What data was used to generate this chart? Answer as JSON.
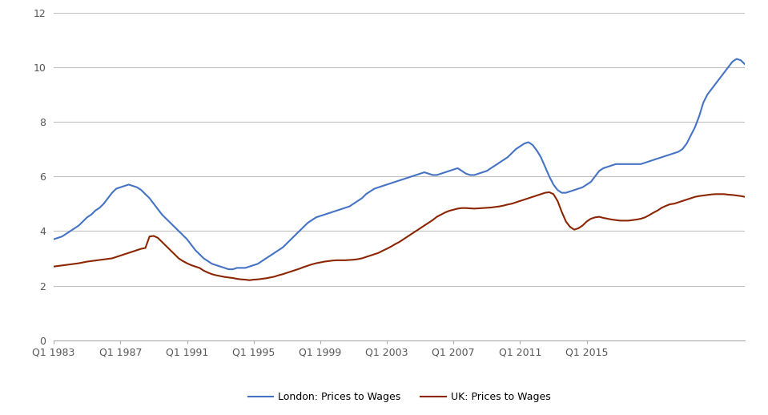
{
  "title": "",
  "xlabel": "",
  "ylabel": "",
  "ylim": [
    0,
    12
  ],
  "yticks": [
    0,
    2,
    4,
    6,
    8,
    10,
    12
  ],
  "xtick_labels": [
    "Q1 1983",
    "Q1 1987",
    "Q1 1991",
    "Q1 1995",
    "Q1 1999",
    "Q1 2003",
    "Q1 2007",
    "Q1 2011",
    "Q1 2015"
  ],
  "london_color": "#4472C4",
  "uk_color": "#8B2500",
  "legend_london": "London: Prices to Wages",
  "legend_uk": "UK: Prices to Wages",
  "background_color": "#FFFFFF",
  "grid_color": "#C0C0C0",
  "london_data": [
    3.7,
    3.75,
    3.8,
    3.9,
    4.0,
    4.1,
    4.2,
    4.35,
    4.5,
    4.6,
    4.75,
    4.85,
    5.0,
    5.2,
    5.4,
    5.55,
    5.6,
    5.65,
    5.7,
    5.65,
    5.6,
    5.5,
    5.35,
    5.2,
    5.0,
    4.8,
    4.6,
    4.45,
    4.3,
    4.15,
    4.0,
    3.85,
    3.7,
    3.5,
    3.3,
    3.15,
    3.0,
    2.9,
    2.8,
    2.75,
    2.7,
    2.65,
    2.6,
    2.6,
    2.65,
    2.65,
    2.65,
    2.7,
    2.75,
    2.8,
    2.9,
    3.0,
    3.1,
    3.2,
    3.3,
    3.4,
    3.55,
    3.7,
    3.85,
    4.0,
    4.15,
    4.3,
    4.4,
    4.5,
    4.55,
    4.6,
    4.65,
    4.7,
    4.75,
    4.8,
    4.85,
    4.9,
    5.0,
    5.1,
    5.2,
    5.35,
    5.45,
    5.55,
    5.6,
    5.65,
    5.7,
    5.75,
    5.8,
    5.85,
    5.9,
    5.95,
    6.0,
    6.05,
    6.1,
    6.15,
    6.1,
    6.05,
    6.05,
    6.1,
    6.15,
    6.2,
    6.25,
    6.3,
    6.2,
    6.1,
    6.05,
    6.05,
    6.1,
    6.15,
    6.2,
    6.3,
    6.4,
    6.5,
    6.6,
    6.7,
    6.85,
    7.0,
    7.1,
    7.2,
    7.25,
    7.15,
    6.95,
    6.7,
    6.35,
    6.0,
    5.7,
    5.5,
    5.4,
    5.4,
    5.45,
    5.5,
    5.55,
    5.6,
    5.7,
    5.8,
    6.0,
    6.2,
    6.3,
    6.35,
    6.4,
    6.45,
    6.45,
    6.45,
    6.45,
    6.45,
    6.45,
    6.45,
    6.5,
    6.55,
    6.6,
    6.65,
    6.7,
    6.75,
    6.8,
    6.85,
    6.9,
    7.0,
    7.2,
    7.5,
    7.8,
    8.2,
    8.7,
    9.0,
    9.2,
    9.4,
    9.6,
    9.8,
    10.0,
    10.2,
    10.3,
    10.25,
    10.1
  ],
  "uk_data": [
    2.7,
    2.72,
    2.74,
    2.76,
    2.78,
    2.8,
    2.82,
    2.85,
    2.88,
    2.9,
    2.92,
    2.94,
    2.96,
    2.98,
    3.0,
    3.05,
    3.1,
    3.15,
    3.2,
    3.25,
    3.3,
    3.35,
    3.38,
    3.8,
    3.82,
    3.75,
    3.6,
    3.45,
    3.3,
    3.15,
    3.0,
    2.9,
    2.82,
    2.75,
    2.7,
    2.65,
    2.55,
    2.48,
    2.42,
    2.38,
    2.35,
    2.32,
    2.3,
    2.28,
    2.25,
    2.23,
    2.22,
    2.2,
    2.22,
    2.23,
    2.25,
    2.27,
    2.3,
    2.33,
    2.38,
    2.42,
    2.47,
    2.52,
    2.57,
    2.62,
    2.68,
    2.73,
    2.78,
    2.82,
    2.85,
    2.88,
    2.9,
    2.92,
    2.93,
    2.93,
    2.93,
    2.94,
    2.95,
    2.97,
    3.0,
    3.05,
    3.1,
    3.15,
    3.2,
    3.28,
    3.35,
    3.43,
    3.52,
    3.6,
    3.7,
    3.8,
    3.9,
    4.0,
    4.1,
    4.2,
    4.3,
    4.4,
    4.52,
    4.6,
    4.68,
    4.74,
    4.78,
    4.82,
    4.84,
    4.84,
    4.83,
    4.82,
    4.83,
    4.84,
    4.85,
    4.86,
    4.88,
    4.9,
    4.93,
    4.97,
    5.0,
    5.05,
    5.1,
    5.15,
    5.2,
    5.25,
    5.3,
    5.35,
    5.4,
    5.42,
    5.35,
    5.1,
    4.7,
    4.35,
    4.15,
    4.05,
    4.1,
    4.2,
    4.35,
    4.45,
    4.5,
    4.52,
    4.48,
    4.45,
    4.42,
    4.4,
    4.38,
    4.38,
    4.38,
    4.4,
    4.42,
    4.45,
    4.5,
    4.58,
    4.67,
    4.75,
    4.85,
    4.92,
    4.98,
    5.0,
    5.05,
    5.1,
    5.15,
    5.2,
    5.25,
    5.28,
    5.3,
    5.32,
    5.34,
    5.35,
    5.35,
    5.35,
    5.33,
    5.32,
    5.3,
    5.28,
    5.25
  ],
  "xtick_positions": [
    0,
    16,
    32,
    48,
    64,
    80,
    96,
    112,
    128
  ]
}
